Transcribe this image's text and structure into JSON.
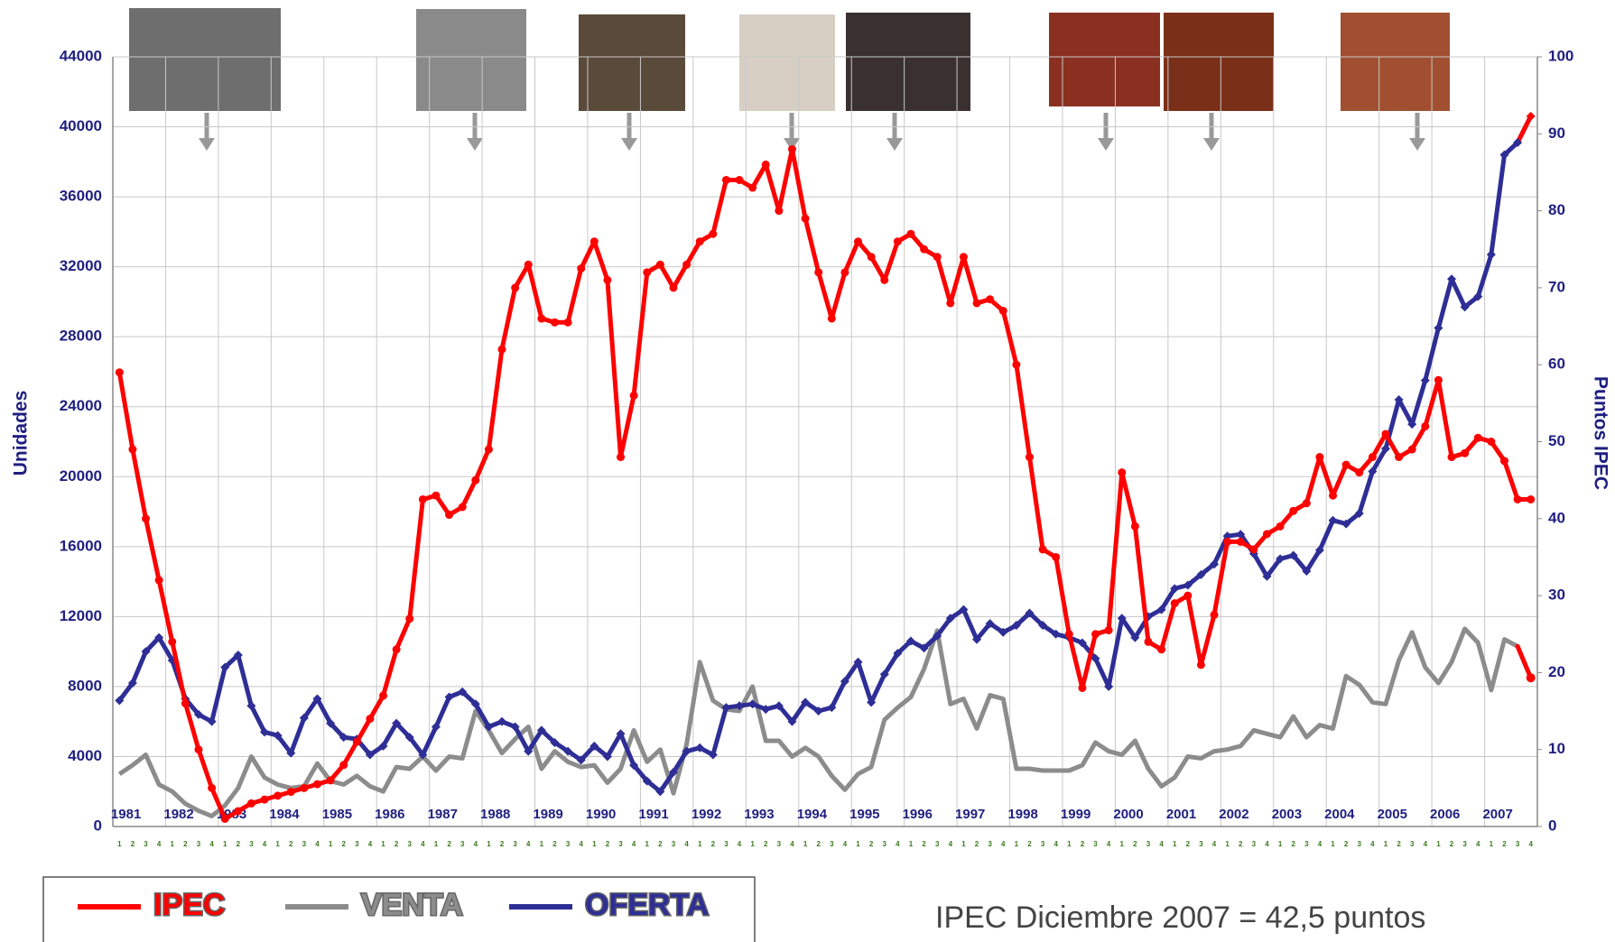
{
  "chart_data": {
    "type": "line",
    "ylabel": "Unidades",
    "y2label": "Puntos IPEC",
    "annotation": "IPEC Diciembre 2007 = 42,5 puntos",
    "years": [
      "1981",
      "1982",
      "1983",
      "1984",
      "1985",
      "1986",
      "1987",
      "1988",
      "1989",
      "1990",
      "1991",
      "1992",
      "1993",
      "1994",
      "1995",
      "1996",
      "1997",
      "1998",
      "1999",
      "2000",
      "2001",
      "2002",
      "2003",
      "2004",
      "2005",
      "2006",
      "2007"
    ],
    "categories": [
      "1",
      "2",
      "3",
      "4",
      "1",
      "2",
      "3",
      "4",
      "1",
      "2",
      "3",
      "4",
      "1",
      "2",
      "3",
      "4",
      "1",
      "2",
      "3",
      "4",
      "1",
      "2",
      "3",
      "4",
      "1",
      "2",
      "3",
      "4",
      "1",
      "2",
      "3",
      "4",
      "1",
      "2",
      "3",
      "4",
      "1",
      "2",
      "3",
      "4",
      "1",
      "2",
      "3",
      "4",
      "1",
      "2",
      "3",
      "4",
      "1",
      "2",
      "3",
      "4",
      "1",
      "2",
      "3",
      "4",
      "1",
      "2",
      "3",
      "4",
      "1",
      "2",
      "3",
      "4",
      "1",
      "2",
      "3",
      "4",
      "1",
      "2",
      "3",
      "4",
      "1",
      "2",
      "3",
      "4",
      "1",
      "2",
      "3",
      "4",
      "1",
      "2",
      "3",
      "4",
      "1",
      "2",
      "3",
      "4",
      "1",
      "2",
      "3",
      "4",
      "1",
      "2",
      "3",
      "4",
      "1",
      "2",
      "3",
      "4",
      "1",
      "2",
      "3",
      "4",
      "1",
      "2",
      "3",
      "4"
    ],
    "ylim": [
      0,
      44000
    ],
    "yticks": [
      0,
      4000,
      8000,
      12000,
      16000,
      20000,
      24000,
      28000,
      32000,
      36000,
      40000,
      44000
    ],
    "y2lim": [
      0,
      100
    ],
    "y2ticks": [
      0,
      10,
      20,
      30,
      40,
      50,
      60,
      70,
      80,
      90,
      100
    ],
    "grid": true,
    "last_segment_color": "#ff0000",
    "series": [
      {
        "name": "IPEC",
        "color": "#ff0000",
        "axis": "y2",
        "marker": "circle",
        "values": [
          59,
          49,
          40,
          32,
          24,
          16,
          10,
          5,
          1,
          2,
          3,
          3.5,
          4,
          4.5,
          5,
          5.5,
          6,
          8,
          11,
          14,
          17,
          23,
          27,
          42.5,
          43,
          40.5,
          41.5,
          45,
          49,
          62,
          70,
          73,
          66,
          65.5,
          65.5,
          72.5,
          76,
          71,
          48,
          56,
          72,
          73,
          70,
          73,
          76,
          77,
          84,
          84,
          83,
          86,
          80,
          88,
          79,
          72,
          66,
          72,
          76,
          74,
          71,
          76,
          77,
          75,
          74,
          68,
          74,
          68,
          68.5,
          67,
          60,
          48,
          36,
          35,
          25,
          18,
          25,
          25.5,
          46,
          39,
          24,
          23,
          29,
          30,
          21,
          27.5,
          37,
          37,
          36,
          38,
          39,
          41,
          42,
          48,
          43,
          47,
          46,
          48,
          51,
          48,
          49,
          52,
          58,
          48,
          48.5,
          50.5,
          50,
          47.5,
          42.5,
          42.5
        ]
      },
      {
        "name": "VENTA",
        "color": "#8c8c8c",
        "axis": "y",
        "marker": "none",
        "values": [
          3000,
          3500,
          4100,
          2400,
          2000,
          1300,
          900,
          600,
          1200,
          2200,
          4000,
          2800,
          2400,
          2200,
          2300,
          3600,
          2600,
          2400,
          2900,
          2300,
          2000,
          3400,
          3300,
          4000,
          3200,
          4000,
          3900,
          6600,
          5500,
          4200,
          5000,
          5700,
          3300,
          4300,
          3700,
          3400,
          3500,
          2500,
          3300,
          5500,
          3700,
          4400,
          1900,
          4700,
          9400,
          7200,
          6700,
          6600,
          8000,
          4900,
          4900,
          4000,
          4500,
          4000,
          2900,
          2100,
          3000,
          3400,
          6100,
          6800,
          7400,
          9000,
          11200,
          7000,
          7300,
          5600,
          7500,
          7300,
          3300,
          3300,
          3200,
          3200,
          3200,
          3500,
          4800,
          4300,
          4100,
          4900,
          3300,
          2300,
          2800,
          4000,
          3900,
          4300,
          4400,
          4600,
          5500,
          5300,
          5100,
          6300,
          5100,
          5800,
          5600,
          8600,
          8100,
          7100,
          7000,
          9500,
          11100,
          9100,
          8200,
          9400,
          11300,
          10500,
          7800,
          10700,
          10300,
          8500
        ]
      },
      {
        "name": "OFERTA",
        "color": "#2e2e96",
        "axis": "y",
        "marker": "diamond",
        "values": [
          7200,
          8200,
          10000,
          10800,
          9500,
          7300,
          6400,
          6000,
          9100,
          9800,
          6900,
          5400,
          5200,
          4200,
          6200,
          7300,
          5900,
          5100,
          5000,
          4100,
          4600,
          5900,
          5100,
          4100,
          5700,
          7400,
          7700,
          7000,
          5700,
          6000,
          5700,
          4300,
          5500,
          4800,
          4300,
          3800,
          4600,
          4000,
          5300,
          3500,
          2600,
          2000,
          3100,
          4300,
          4500,
          4100,
          6800,
          6900,
          7000,
          6700,
          6900,
          6000,
          7100,
          6600,
          6800,
          8300,
          9400,
          7100,
          8700,
          9900,
          10600,
          10200,
          10900,
          11900,
          12400,
          10700,
          11600,
          11100,
          11500,
          12200,
          11500,
          11000,
          10800,
          10500,
          9600,
          8000,
          11900,
          10800,
          12000,
          12400,
          13600,
          13800,
          14400,
          15000,
          16600,
          16700,
          15600,
          14300,
          15300,
          15500,
          14600,
          15800,
          17500,
          17300,
          17900,
          20300,
          21600,
          24400,
          23000,
          25500,
          28500,
          31300,
          29700,
          30300,
          32700,
          38400,
          39100,
          40600
        ]
      }
    ]
  }
}
